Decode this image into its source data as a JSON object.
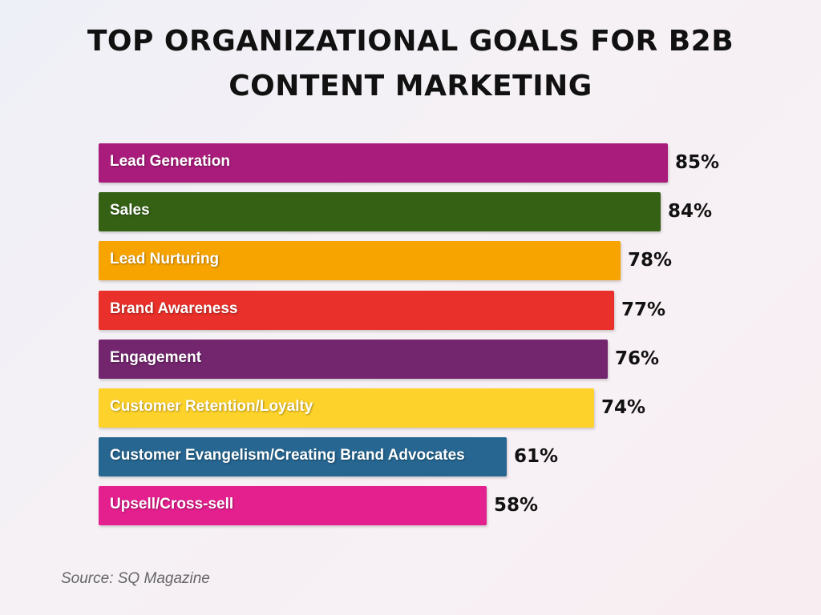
{
  "chart_data": {
    "type": "bar",
    "orientation": "horizontal",
    "title": "TOP ORGANIZATIONAL GOALS FOR B2B CONTENT MARKETING",
    "title_lines": [
      "TOP ORGANIZATIONAL GOALS FOR B2B",
      "CONTENT MARKETING"
    ],
    "categories": [
      "Lead Generation",
      "Sales",
      "Lead Nurturing",
      "Brand Awareness",
      "Engagement",
      "Customer Retention/Loyalty",
      "Customer Evangelism/Creating Brand Advocates",
      "Upsell/Cross-sell"
    ],
    "values": [
      85,
      84,
      78,
      77,
      76,
      74,
      61,
      58
    ],
    "value_labels": [
      "85%",
      "84%",
      "78%",
      "77%",
      "76%",
      "74%",
      "61%",
      "58%"
    ],
    "colors": [
      "#a91c7c",
      "#356114",
      "#f7a400",
      "#e9302a",
      "#73266e",
      "#fdd22a",
      "#266691",
      "#e41f8e"
    ],
    "unit": "%",
    "xlim": [
      0,
      100
    ],
    "grid": false,
    "legend": "none"
  },
  "source": "Source: SQ Magazine"
}
